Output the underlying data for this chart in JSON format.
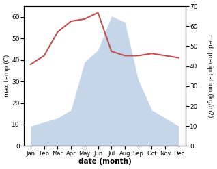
{
  "months": [
    "Jan",
    "Feb",
    "Mar",
    "Apr",
    "May",
    "Jun",
    "Jul",
    "Aug",
    "Sep",
    "Oct",
    "Nov",
    "Dec"
  ],
  "x": [
    1,
    2,
    3,
    4,
    5,
    6,
    7,
    8,
    9,
    10,
    11,
    12
  ],
  "temperature": [
    38,
    42,
    53,
    58,
    59,
    62,
    44,
    42,
    42,
    43,
    42,
    41
  ],
  "precipitation": [
    10,
    12,
    14,
    18,
    42,
    48,
    65,
    62,
    33,
    18,
    14,
    10
  ],
  "temp_color": "#c0504d",
  "precip_color": "#c5d5ea",
  "ylabel_left": "max temp (C)",
  "ylabel_right": "med. precipitation (kg/m2)",
  "xlabel": "date (month)",
  "ylim_left": [
    0,
    65
  ],
  "ylim_right": [
    0,
    70
  ],
  "yticks_left": [
    0,
    10,
    20,
    30,
    40,
    50,
    60
  ],
  "yticks_right": [
    0,
    10,
    20,
    30,
    40,
    50,
    60,
    70
  ],
  "bg_color": "#ffffff",
  "temp_linewidth": 1.5
}
